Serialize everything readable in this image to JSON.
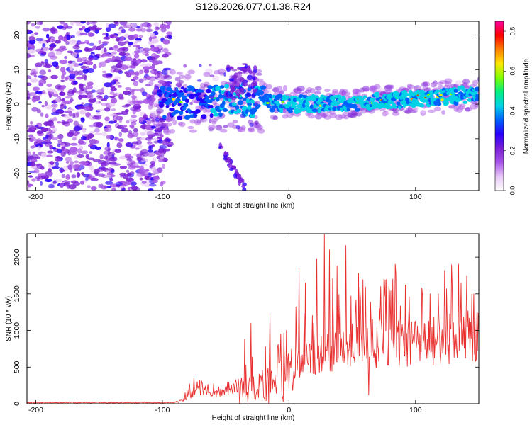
{
  "title": "S126.2026.077.01.38.R24",
  "chart_data": [
    {
      "type": "heatmap",
      "name": "spectrogram",
      "xlabel": "Height of straight line (km)",
      "ylabel": "Frequency (Hz)",
      "xlim": [
        -207,
        150
      ],
      "ylim": [
        -25,
        24
      ],
      "xticks": [
        -200,
        -100,
        0,
        100
      ],
      "xtick_labels": [
        "-200",
        "-100",
        "0",
        "100"
      ],
      "yticks": [
        20,
        10,
        0,
        -10,
        -20
      ],
      "ytick_labels": [
        "20",
        "10",
        "0",
        "-10",
        "-20"
      ],
      "colorbar": {
        "label": "Normalized spectral amplitude",
        "range": [
          0,
          0.85
        ],
        "ticks": [
          0.8,
          0.6,
          0.4,
          0.2,
          0.0
        ],
        "tick_labels": [
          "0.8",
          "0.6",
          "0.4",
          "0.2",
          "0.0"
        ],
        "colormap": [
          "#ffffff",
          "#e6c6f6",
          "#a855e6",
          "#7a1fd6",
          "#2a00ff",
          "#0060ff",
          "#00d2e6",
          "#00f080",
          "#80ff00",
          "#ffe600",
          "#ff8000",
          "#ff0000",
          "#ff00a0"
        ]
      },
      "band": {
        "noise_region_x": [
          -207,
          -100
        ],
        "signal_start_x": -102,
        "center_freq_at_x": [
          [
            -100,
            0.3
          ],
          [
            -60,
            0.8
          ],
          [
            -40,
            1.5
          ],
          [
            0,
            0
          ],
          [
            50,
            0.5
          ],
          [
            100,
            1.5
          ],
          [
            150,
            3
          ]
        ],
        "secondary_trail": [
          [
            -55,
            -12
          ],
          [
            -45,
            -18
          ],
          [
            -35,
            -24
          ]
        ]
      }
    },
    {
      "type": "line",
      "name": "snr",
      "xlabel": "Height of straight line (km)",
      "ylabel": "SNR (10 * v/v)",
      "xlim": [
        -207,
        150
      ],
      "ylim": [
        0,
        2320
      ],
      "xticks": [
        -200,
        -100,
        0,
        100
      ],
      "xtick_labels": [
        "-200",
        "-100",
        "0",
        "100"
      ],
      "yticks": [
        0,
        500,
        1000,
        1500,
        2000
      ],
      "ytick_labels": [
        "0",
        "500",
        "1000",
        "1500",
        "2000"
      ],
      "color": "#e8302f",
      "envelope_km_snr": [
        [
          -207,
          15
        ],
        [
          -90,
          15
        ],
        [
          -85,
          40
        ],
        [
          -80,
          110
        ],
        [
          -72,
          200
        ],
        [
          -60,
          130
        ],
        [
          -45,
          220
        ],
        [
          -30,
          350
        ],
        [
          -15,
          420
        ],
        [
          0,
          560
        ],
        [
          20,
          720
        ],
        [
          50,
          850
        ],
        [
          80,
          900
        ],
        [
          110,
          920
        ],
        [
          150,
          1000
        ]
      ],
      "peaks": [
        {
          "x": 28,
          "y": 2310
        },
        {
          "x": 45,
          "y": 2160
        },
        {
          "x": 32,
          "y": 2100
        },
        {
          "x": 8,
          "y": 1850
        },
        {
          "x": 22,
          "y": 1980
        },
        {
          "x": 38,
          "y": 1880
        },
        {
          "x": 55,
          "y": 1780
        },
        {
          "x": 63,
          "y": 1850
        },
        {
          "x": 75,
          "y": 1700
        },
        {
          "x": 92,
          "y": 1620
        },
        {
          "x": 105,
          "y": 1580
        },
        {
          "x": 118,
          "y": 1500
        },
        {
          "x": 146,
          "y": 1500
        },
        {
          "x": -15,
          "y": 1230
        },
        {
          "x": -30,
          "y": 1100
        },
        {
          "x": -35,
          "y": 880
        },
        {
          "x": -2,
          "y": 1000
        },
        {
          "x": 13,
          "y": 1650
        },
        {
          "x": -75,
          "y": 380
        }
      ]
    }
  ]
}
